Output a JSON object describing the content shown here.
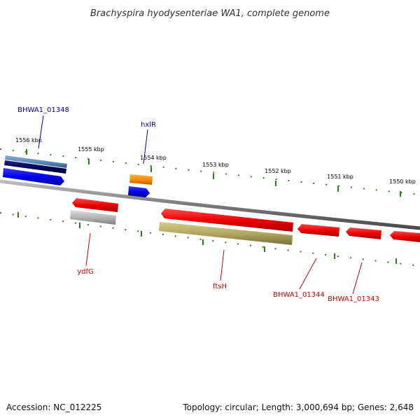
{
  "title": "Brachyspira hyodysenteriae WA1, complete genome",
  "footer": {
    "accession": "Accession: NC_012225",
    "summary": "Topology: circular; Length: 3,000,694 bp; Genes: 2,648"
  },
  "colors": {
    "backbone": "#7a7a7a",
    "ticks": "#2e7d1e",
    "forward_label": "#0000aa",
    "reverse_label": "#cc0000",
    "gene_blue": "#0000ee",
    "gene_red": "#ee0000",
    "gene_orange": "#ff8c00",
    "gene_steel": "#5588bb",
    "gene_navy": "#000055",
    "gene_gray": "#b5b5b5",
    "gene_olive": "#b0a860"
  },
  "ticks": [
    {
      "label": "1556 kbp"
    },
    {
      "label": "1555 kbp"
    },
    {
      "label": "1554 kbp"
    },
    {
      "label": "1553 kbp"
    },
    {
      "label": "1552 kbp"
    },
    {
      "label": "1551 kbp"
    },
    {
      "label": "1550 kbp"
    }
  ],
  "genes": {
    "forward": [
      {
        "label": "BHWA1_01348"
      },
      {
        "label": "hxlR"
      }
    ],
    "reverse": [
      {
        "label": "ydfG"
      },
      {
        "label": "ftsH"
      },
      {
        "label": "BHWA1_01344"
      },
      {
        "label": "BHWA1_01343"
      }
    ]
  }
}
